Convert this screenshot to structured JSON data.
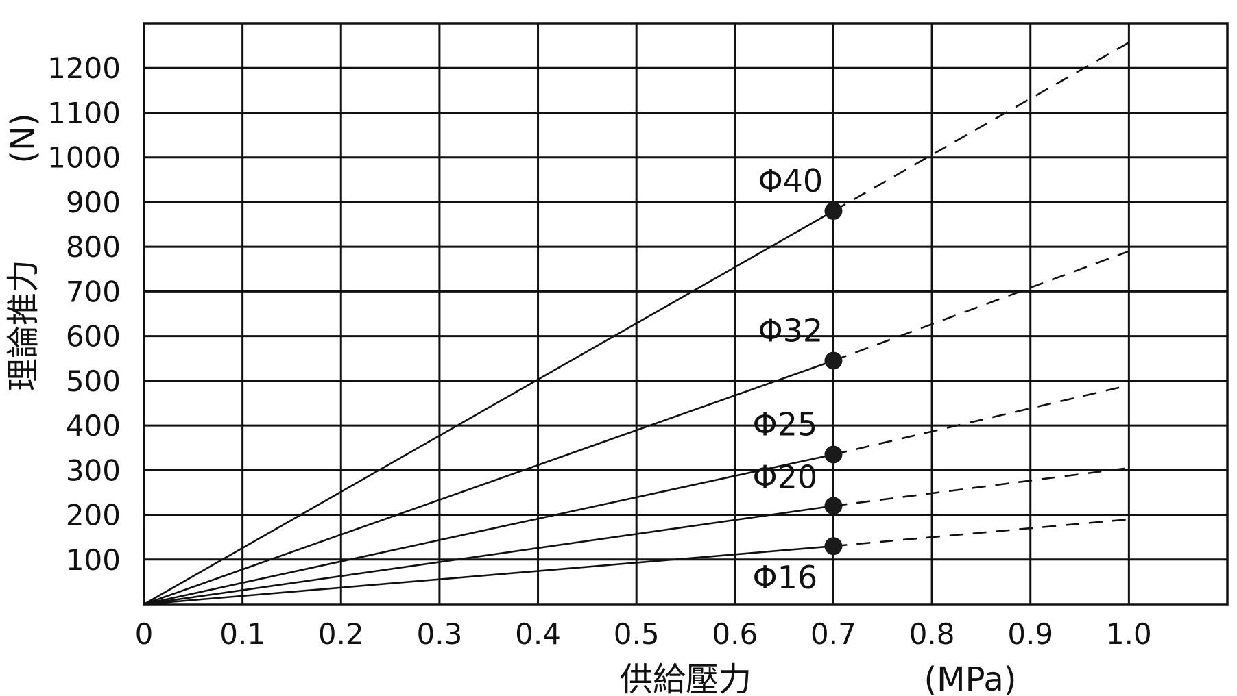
{
  "chart_data": {
    "type": "line",
    "title": "",
    "xlabel": "供給壓力",
    "xunit": "(MPa)",
    "ylabel": "理論推力",
    "yunit": "(N)",
    "xlim": [
      0,
      1.1
    ],
    "ylim": [
      0,
      1300
    ],
    "grid": true,
    "legend": "none",
    "x_ticks": [
      "0",
      "0.1",
      "0.2",
      "0.3",
      "0.4",
      "0.5",
      "0.6",
      "0.7",
      "0.8",
      "0.9",
      "1.0"
    ],
    "y_ticks": [
      "100",
      "200",
      "300",
      "400",
      "500",
      "600",
      "700",
      "800",
      "900",
      "1000",
      "1100",
      "1200"
    ],
    "x_tick_values": [
      0,
      0.1,
      0.2,
      0.3,
      0.4,
      0.5,
      0.6,
      0.7,
      0.8,
      0.9,
      1.0
    ],
    "y_tick_values": [
      100,
      200,
      300,
      400,
      500,
      600,
      700,
      800,
      900,
      1000,
      1100,
      1200
    ],
    "marker_x": 0.7,
    "series": [
      {
        "name": "Φ40",
        "solid": [
          [
            0,
            0
          ],
          [
            0.7,
            880
          ]
        ],
        "dashed": [
          [
            0.7,
            880
          ],
          [
            1.0,
            1257
          ]
        ]
      },
      {
        "name": "Φ32",
        "solid": [
          [
            0,
            0
          ],
          [
            0.7,
            545
          ]
        ],
        "dashed": [
          [
            0.7,
            545
          ],
          [
            1.0,
            790
          ]
        ]
      },
      {
        "name": "Φ25",
        "solid": [
          [
            0,
            0
          ],
          [
            0.7,
            335
          ]
        ],
        "dashed": [
          [
            0.7,
            335
          ],
          [
            1.0,
            490
          ]
        ]
      },
      {
        "name": "Φ20",
        "solid": [
          [
            0,
            0
          ],
          [
            0.7,
            220
          ]
        ],
        "dashed": [
          [
            0.7,
            220
          ],
          [
            1.0,
            305
          ]
        ]
      },
      {
        "name": "Φ16",
        "solid": [
          [
            0,
            0
          ],
          [
            0.7,
            130
          ]
        ],
        "dashed": [
          [
            0.7,
            130
          ],
          [
            1.0,
            190
          ]
        ]
      }
    ],
    "series_label_text": [
      "Φ40",
      "Φ32",
      "Φ25",
      "Φ20",
      "Φ16"
    ]
  }
}
